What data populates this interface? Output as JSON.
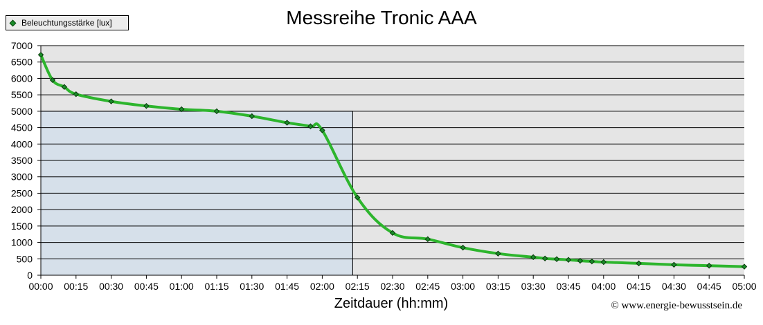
{
  "chart_data": {
    "type": "line",
    "title": "Messreihe Tronic AAA",
    "xlabel": "Zeitdauer (hh:mm)",
    "ylabel": "",
    "legend": {
      "label": "Beleuchtungsstärke [lux]",
      "placement": "top-left"
    },
    "credit": "© www.energie-bewusstsein.de",
    "ylim": [
      0,
      7000
    ],
    "yticks": [
      0,
      500,
      1000,
      1500,
      2000,
      2500,
      3000,
      3500,
      4000,
      4500,
      5000,
      5500,
      6000,
      6500,
      7000
    ],
    "xlim": [
      "00:00",
      "05:00"
    ],
    "xticks": [
      "00:00",
      "00:15",
      "00:30",
      "00:45",
      "01:00",
      "01:15",
      "01:30",
      "01:45",
      "02:00",
      "02:15",
      "02:30",
      "02:45",
      "03:00",
      "03:15",
      "03:30",
      "03:45",
      "04:00",
      "04:15",
      "04:30",
      "04:45",
      "05:00"
    ],
    "grid": true,
    "highlight_region": {
      "x": [
        "00:00",
        "02:13"
      ],
      "y": [
        0,
        5000
      ]
    },
    "line_color": "#2db52d",
    "series": [
      {
        "name": "Beleuchtungsstärke [lux]",
        "x": [
          "00:00",
          "00:05",
          "00:10",
          "00:15",
          "00:30",
          "00:45",
          "01:00",
          "01:15",
          "01:30",
          "01:45",
          "01:55",
          "02:00",
          "02:15",
          "02:30",
          "02:45",
          "03:00",
          "03:15",
          "03:30",
          "03:35",
          "03:40",
          "03:45",
          "03:50",
          "03:55",
          "04:00",
          "04:15",
          "04:30",
          "04:45",
          "05:00"
        ],
        "values": [
          6720,
          5950,
          5740,
          5520,
          5300,
          5160,
          5060,
          5000,
          4850,
          4650,
          4540,
          4420,
          2370,
          1290,
          1100,
          840,
          660,
          550,
          510,
          490,
          470,
          440,
          420,
          400,
          360,
          320,
          290,
          260
        ]
      }
    ]
  }
}
